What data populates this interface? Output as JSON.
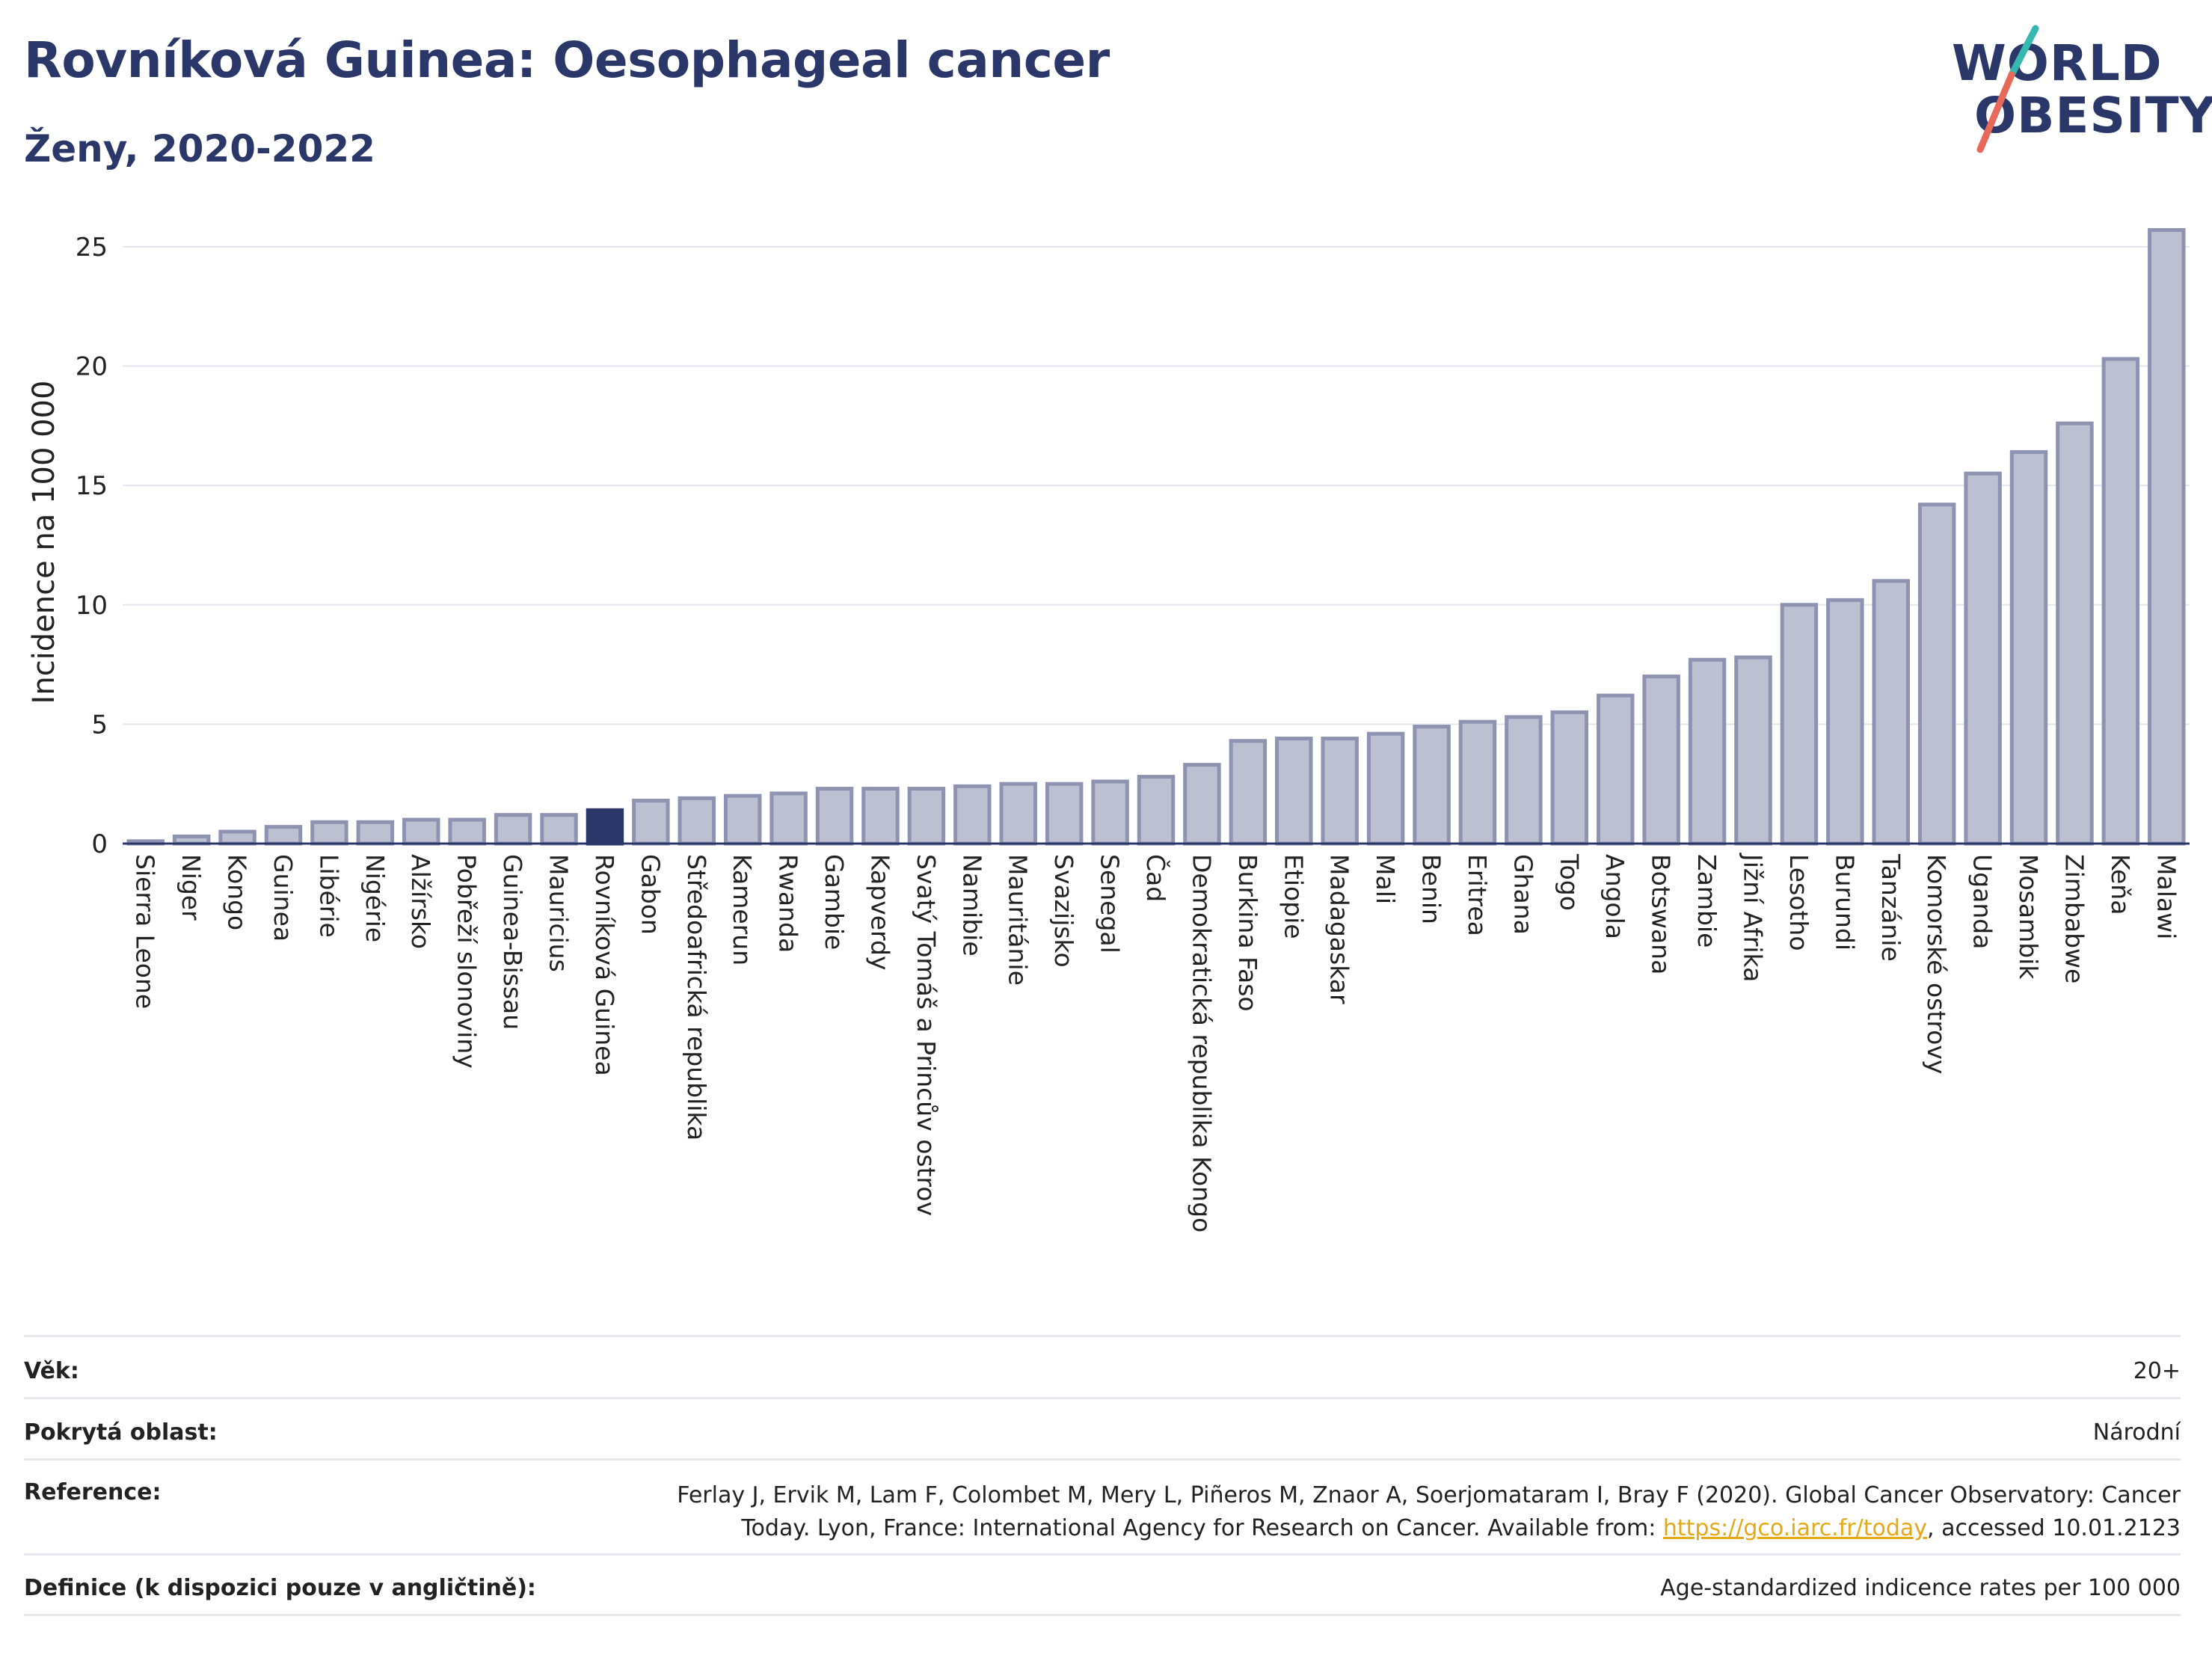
{
  "header": {
    "title": "Rovníková Guinea: Oesophageal cancer",
    "subtitle": "Ženy, 2020-2022"
  },
  "logo": {
    "line1": "WORLD",
    "line2": "OBESITY",
    "accent_colors": [
      "#34b8b0",
      "#e8685a"
    ]
  },
  "colors": {
    "bar_fill": "#bcc0d0",
    "bar_stroke": "#8d93b0",
    "highlight_fill": "#2b3768",
    "title_color": "#2b3768"
  },
  "chart_data": {
    "type": "bar",
    "ylabel": "Incidence na 100 000",
    "xlabel": "",
    "ylim": [
      0,
      26.5
    ],
    "yticks": [
      0,
      5,
      10,
      15,
      20,
      25
    ],
    "grid": true,
    "highlight": "Rovníková Guinea",
    "categories": [
      "Sierra Leone",
      "Niger",
      "Kongo",
      "Guinea",
      "Libérie",
      "Nigérie",
      "Alžírsko",
      "Pobřeží slonoviny",
      "Guinea-Bissau",
      "Mauricius",
      "Rovníková Guinea",
      "Gabon",
      "Středoafrická republika",
      "Kamerun",
      "Rwanda",
      "Gambie",
      "Kapverdy",
      "Svatý Tomáš a Princův ostrov",
      "Namibie",
      "Mauritánie",
      "Svazijsko",
      "Senegal",
      "Čad",
      "Demokratická republika Kongo",
      "Burkina Faso",
      "Etiopie",
      "Madagaskar",
      "Mali",
      "Benin",
      "Eritrea",
      "Ghana",
      "Togo",
      "Angola",
      "Botswana",
      "Zambie",
      "Jižní Afrika",
      "Lesotho",
      "Burundi",
      "Tanzánie",
      "Komorské ostrovy",
      "Uganda",
      "Mosambik",
      "Zimbabwe",
      "Keňa",
      "Malawi"
    ],
    "values": [
      0.1,
      0.3,
      0.5,
      0.7,
      0.9,
      0.9,
      1.0,
      1.0,
      1.2,
      1.2,
      1.4,
      1.8,
      1.9,
      2.0,
      2.1,
      2.3,
      2.3,
      2.3,
      2.4,
      2.5,
      2.5,
      2.6,
      2.8,
      3.3,
      4.3,
      4.4,
      4.4,
      4.6,
      4.9,
      5.1,
      5.3,
      5.5,
      6.2,
      7.0,
      7.7,
      7.8,
      10.0,
      10.2,
      11.0,
      14.2,
      15.5,
      16.4,
      17.6,
      20.3,
      25.7
    ]
  },
  "info": {
    "age_label": "Věk:",
    "age_value": "20+",
    "coverage_label": "Pokrytá oblast:",
    "coverage_value": "Národní",
    "reference_label": "Reference:",
    "reference_line1": "Ferlay J, Ervik M, Lam F, Colombet M, Mery L, Piñeros M, Znaor A, Soerjomataram I, Bray F (2020). Global Cancer Observatory: Cancer",
    "reference_line2_pre": "Today. Lyon, France: International Agency for Research on Cancer. Available from: ",
    "reference_link": "https://gco.iarc.fr/today",
    "reference_line2_post": ", accessed 10.01.2123",
    "definition_label": "Definice (k dispozici pouze v angličtině):",
    "definition_value": "Age-standardized indicence rates per 100 000"
  }
}
